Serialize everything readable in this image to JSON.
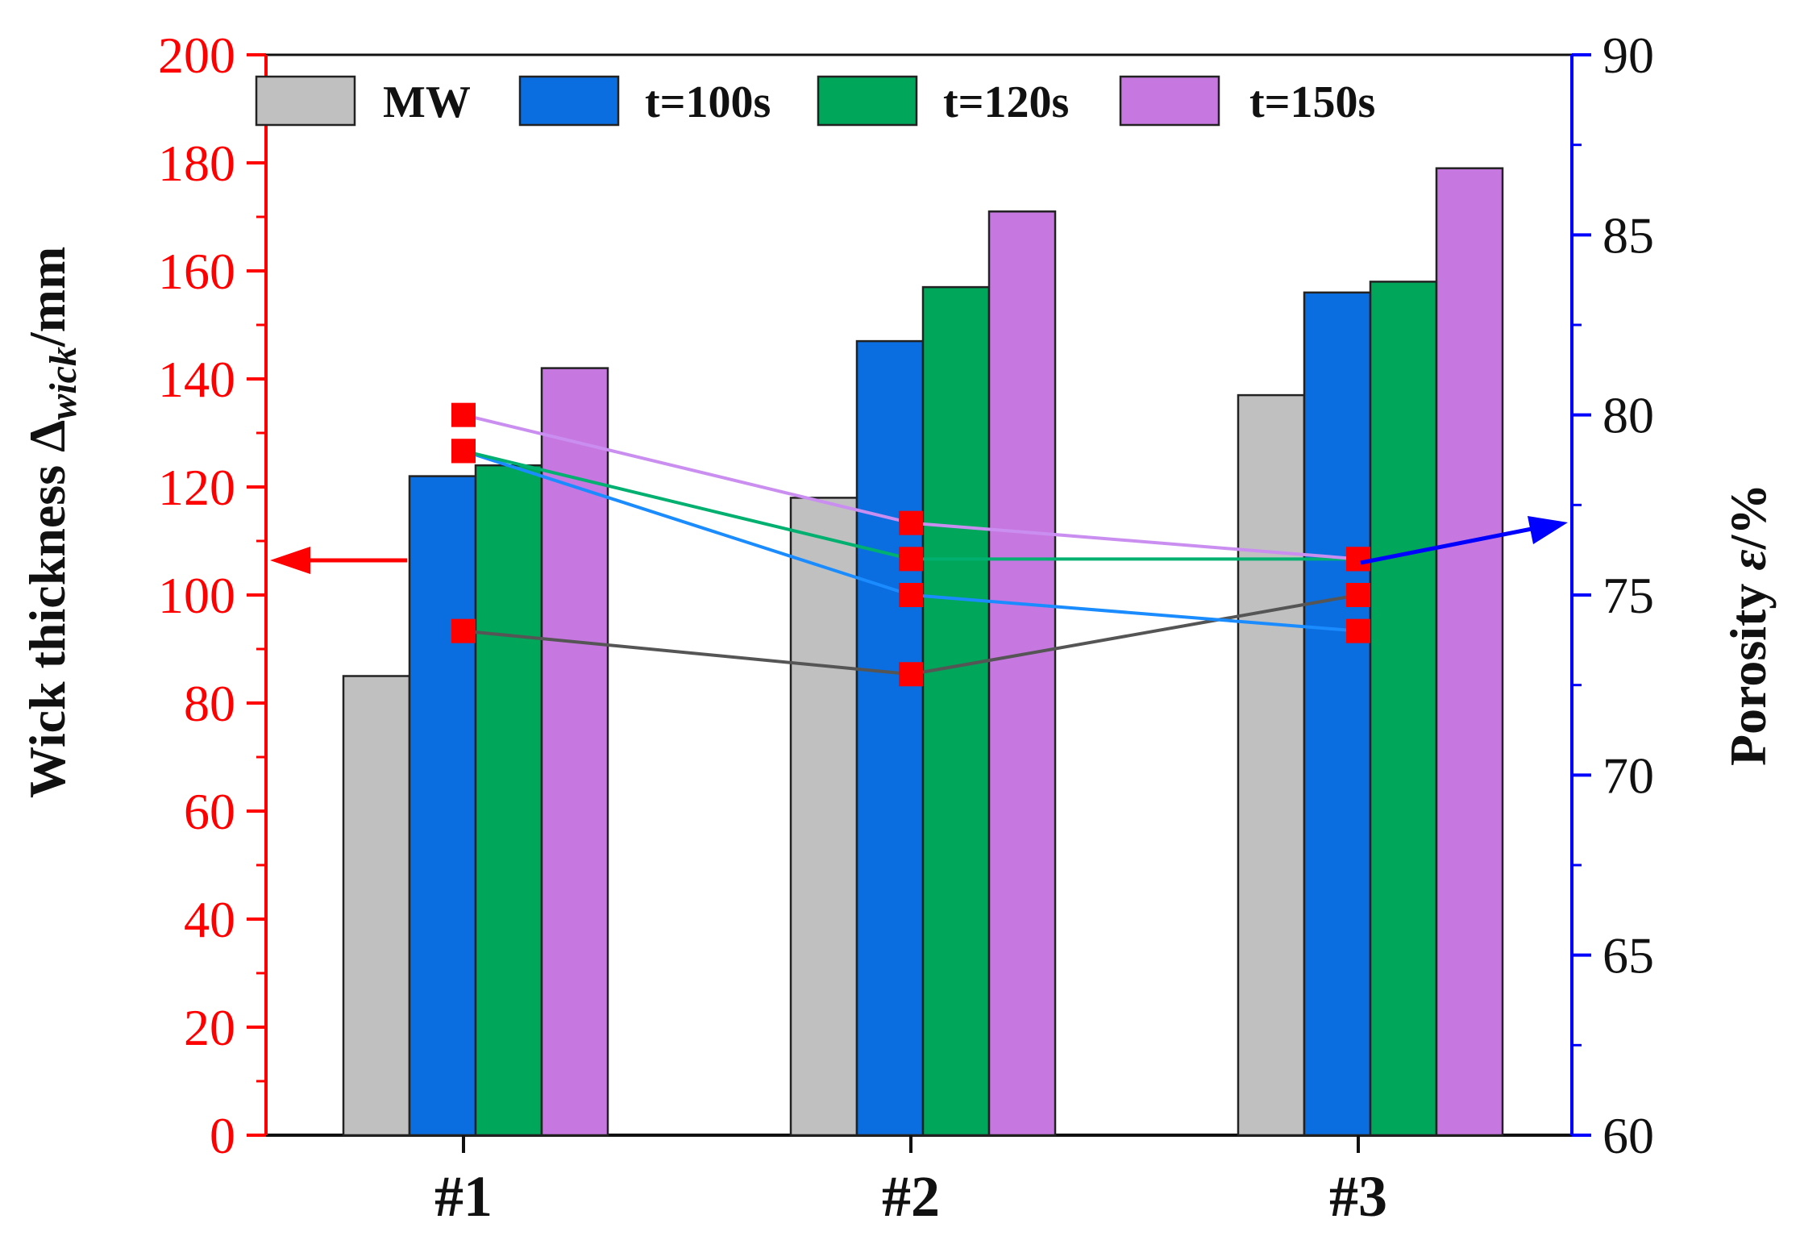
{
  "chart_data": {
    "type": "bar",
    "categories": [
      "#1",
      "#2",
      "#3"
    ],
    "series": [
      {
        "name": "MW",
        "color": "#c0c0c0",
        "values": [
          85,
          118,
          137
        ],
        "porosity": [
          74.0,
          72.8,
          75.0
        ]
      },
      {
        "name": "t=100s",
        "color": "#0a6ee0",
        "values": [
          122,
          147,
          156
        ],
        "porosity": [
          79.0,
          75.0,
          74.0
        ]
      },
      {
        "name": "t=120s",
        "color": "#00a65a",
        "values": [
          124,
          157,
          158
        ],
        "porosity": [
          79.0,
          76.0,
          76.0
        ]
      },
      {
        "name": "t=150s",
        "color": "#c678e0",
        "values": [
          142,
          171,
          179
        ],
        "porosity": [
          80.0,
          77.0,
          76.0
        ]
      }
    ],
    "left_axis": {
      "title_main": "Wick thickness Δ",
      "title_sub": "wick",
      "title_unit": "/mm",
      "ylim": [
        0,
        200
      ],
      "ticks": [
        "0",
        "20",
        "40",
        "60",
        "80",
        "100",
        "120",
        "140",
        "160",
        "180",
        "200"
      ],
      "color": "#ff0000"
    },
    "right_axis": {
      "title_main": "Porosity ",
      "title_symbol": "ε",
      "title_unit": "/%",
      "ylim": [
        60,
        90
      ],
      "ticks": [
        "60",
        "65",
        "70",
        "75",
        "80",
        "85",
        "90"
      ],
      "color": "#0000ff"
    },
    "marker_color": "#ff0000",
    "legend_position": "top"
  }
}
